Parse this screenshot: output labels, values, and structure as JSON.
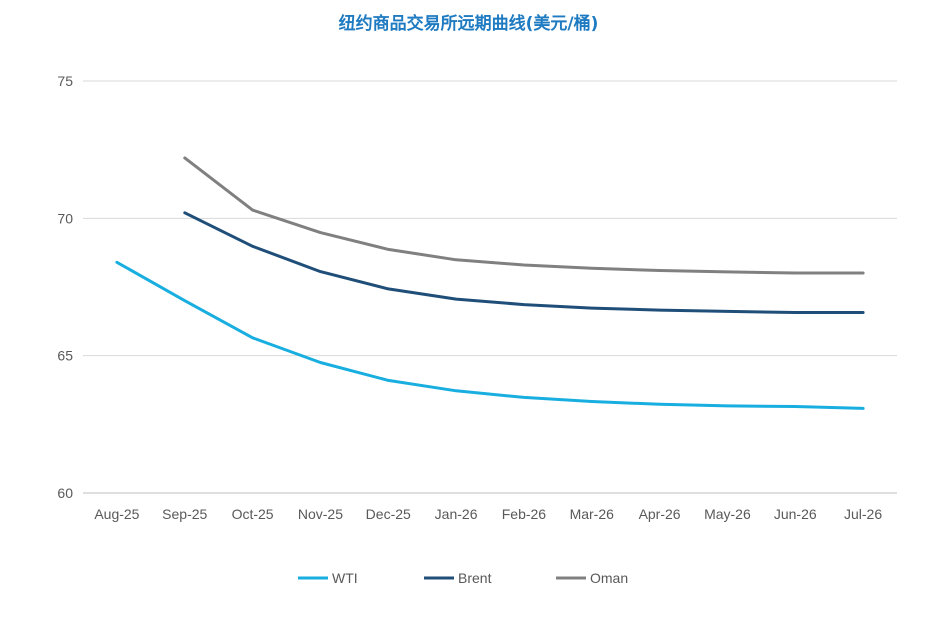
{
  "chart_data": {
    "type": "line",
    "title": "纽约商品交易所远期曲线(美元/桶)",
    "xlabel": "",
    "ylabel": "",
    "categories": [
      "Aug-25",
      "Sep-25",
      "Oct-25",
      "Nov-25",
      "Dec-25",
      "Jan-26",
      "Feb-26",
      "Mar-26",
      "Apr-26",
      "May-26",
      "Jun-26",
      "Jul-26"
    ],
    "ylim": [
      60,
      75
    ],
    "yticks": [
      60,
      65,
      70,
      75
    ],
    "grid": "horizontal",
    "legend_position": "bottom",
    "series": [
      {
        "name": "WTI",
        "color": "#19aee0",
        "values": [
          68.4,
          67.0,
          65.65,
          64.75,
          64.1,
          63.72,
          63.48,
          63.33,
          63.23,
          63.17,
          63.15,
          63.08
        ]
      },
      {
        "name": "Brent",
        "color": "#1f4e79",
        "values": [
          null,
          70.2,
          68.98,
          68.06,
          67.43,
          67.06,
          66.86,
          66.73,
          66.66,
          66.61,
          66.57,
          66.57
        ]
      },
      {
        "name": "Oman",
        "color": "#808080",
        "values": [
          null,
          72.2,
          70.3,
          69.48,
          68.87,
          68.49,
          68.3,
          68.18,
          68.1,
          68.05,
          68.01,
          68.01
        ]
      }
    ]
  }
}
